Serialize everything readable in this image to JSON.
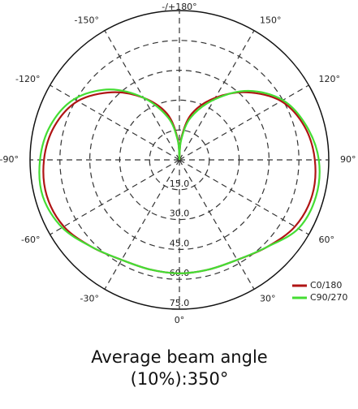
{
  "chart_data": {
    "type": "polar",
    "caption": [
      "Average beam angle",
      "(10%):350°"
    ],
    "x": [
      -180,
      -175,
      -165,
      -150,
      -135,
      -120,
      -105,
      -90,
      -75,
      -60,
      -45,
      -30,
      -15,
      0,
      15,
      30,
      45,
      60,
      75,
      90,
      105,
      120,
      135,
      150,
      165,
      175,
      180
    ],
    "series": [
      {
        "name": "C0/180",
        "color": "#b01414",
        "values": [
          0,
          11,
          24,
          36,
          48,
          59,
          65,
          68,
          69,
          67,
          62,
          58,
          57,
          57,
          57,
          58,
          62,
          67,
          69,
          68,
          65,
          59,
          48,
          36,
          24,
          11,
          0
        ]
      },
      {
        "name": "C90/270",
        "color": "#44dd33",
        "values": [
          0,
          10,
          22,
          36,
          50,
          61,
          67,
          70,
          71,
          68,
          62,
          58,
          57,
          57,
          57,
          58,
          62,
          69,
          71,
          70,
          66,
          60,
          49,
          35,
          22,
          10,
          0
        ]
      }
    ],
    "rlim": [
      0,
      75
    ],
    "rticks": [
      {
        "value": 15,
        "label": "15.0"
      },
      {
        "value": 30,
        "label": "30.0"
      },
      {
        "value": 45,
        "label": "45.0"
      },
      {
        "value": 60,
        "label": "60.0"
      },
      {
        "value": 75,
        "label": "75.0"
      }
    ],
    "angle_ticks": [
      {
        "value": 0,
        "label": "0°"
      },
      {
        "value": 30,
        "label": "30°"
      },
      {
        "value": 60,
        "label": "60°"
      },
      {
        "value": 90,
        "label": "90°"
      },
      {
        "value": 120,
        "label": "120°"
      },
      {
        "value": 150,
        "label": "150°"
      },
      {
        "value": 180,
        "label": "-/+180°"
      },
      {
        "value": -150,
        "label": "-150°"
      },
      {
        "value": -120,
        "label": "-120°"
      },
      {
        "value": -90,
        "label": "-90°"
      },
      {
        "value": -60,
        "label": "-60°"
      },
      {
        "value": -30,
        "label": "-30°"
      }
    ],
    "legend": "lower right"
  }
}
